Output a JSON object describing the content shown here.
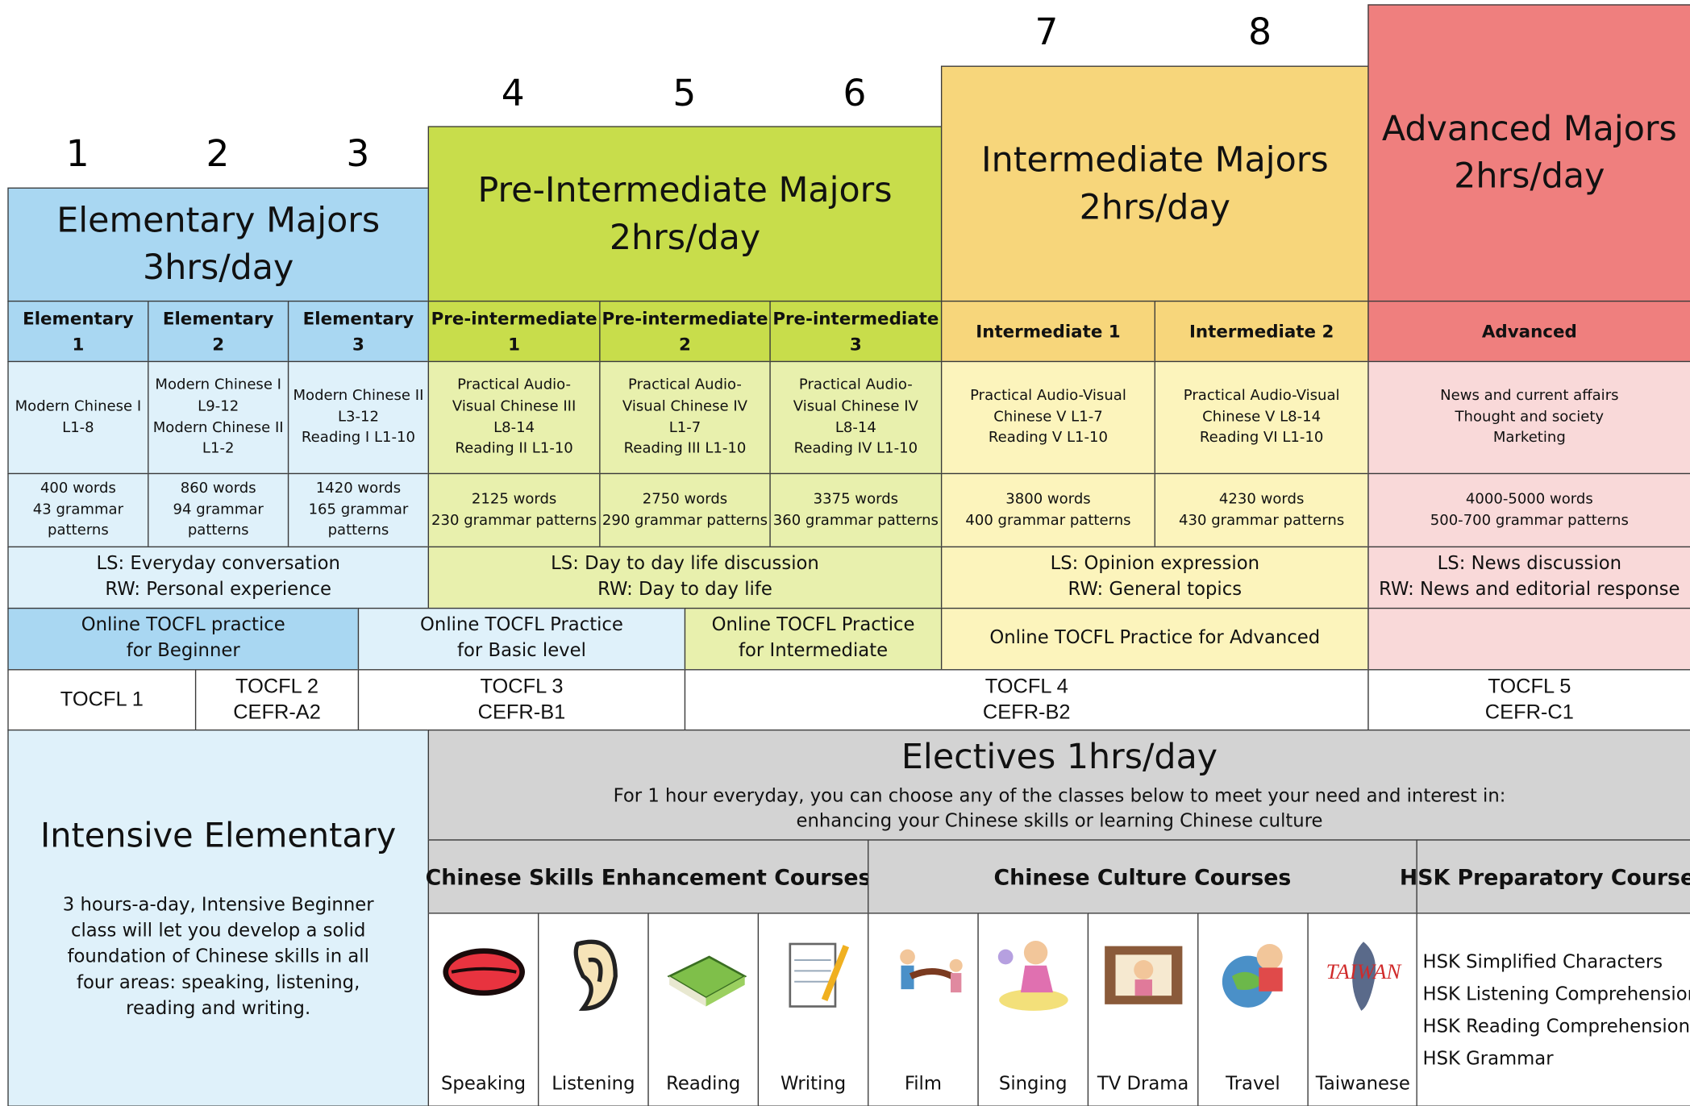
{
  "level_numbers": [
    "1",
    "2",
    "3",
    "4",
    "5",
    "6",
    "7",
    "8"
  ],
  "majors": [
    [
      "Elementary Majors",
      "3hrs/day"
    ],
    [
      "Pre-Intermediate Majors",
      "2hrs/day"
    ],
    [
      "Intermediate Majors",
      "2hrs/day"
    ],
    [
      "Advanced Majors",
      "2hrs/day"
    ]
  ],
  "levels": [
    [
      "Elementary",
      "1"
    ],
    [
      "Elementary",
      "2"
    ],
    [
      "Elementary",
      "3"
    ],
    [
      "Pre-intermediate",
      "1"
    ],
    [
      "Pre-intermediate",
      "2"
    ],
    [
      "Pre-intermediate",
      "3"
    ],
    [
      "Intermediate 1"
    ],
    [
      "Intermediate 2"
    ],
    [
      "Advanced"
    ]
  ],
  "textbooks": [
    [
      "Modern Chinese I",
      "L1-8"
    ],
    [
      "Modern Chinese I",
      "L9-12",
      "Modern Chinese II",
      "L1-2"
    ],
    [
      "Modern Chinese II",
      "L3-12",
      "Reading I L1-10"
    ],
    [
      "Practical Audio-",
      "Visual Chinese III",
      "L8-14",
      "Reading II L1-10"
    ],
    [
      "Practical Audio-",
      "Visual Chinese IV",
      "L1-7",
      "Reading III L1-10"
    ],
    [
      "Practical Audio-",
      "Visual Chinese IV",
      "L8-14",
      "Reading IV L1-10"
    ],
    [
      "Practical Audio-Visual",
      "Chinese V L1-7",
      "Reading V L1-10"
    ],
    [
      "Practical Audio-Visual",
      "Chinese V L8-14",
      "Reading VI L1-10"
    ],
    [
      "News and current affairs",
      "Thought and society",
      "Marketing"
    ]
  ],
  "vocabulary": [
    [
      "400 words",
      "43 grammar",
      "patterns"
    ],
    [
      "860 words",
      "94 grammar",
      "patterns"
    ],
    [
      "1420 words",
      "165 grammar",
      "patterns"
    ],
    [
      "2125 words",
      "230 grammar patterns"
    ],
    [
      "2750 words",
      "290 grammar patterns"
    ],
    [
      "3375 words",
      "360 grammar patterns"
    ],
    [
      "3800 words",
      "400 grammar patterns"
    ],
    [
      "4230 words",
      "430 grammar patterns"
    ],
    [
      "4000-5000 words",
      "500-700 grammar patterns"
    ]
  ],
  "skills": [
    [
      "LS: Everyday conversation",
      "RW: Personal experience"
    ],
    [
      "LS: Day to day life discussion",
      "RW: Day to day life"
    ],
    [
      "LS: Opinion expression",
      "RW: General topics"
    ],
    [
      "LS: News discussion",
      "RW: News and editorial response"
    ]
  ],
  "online_practice": [
    [
      "Online TOCFL practice",
      "for Beginner"
    ],
    [
      "Online TOCFL Practice",
      "for Basic level"
    ],
    [
      "Online TOCFL Practice",
      "for Intermediate"
    ],
    [
      "Online TOCFL Practice for Advanced"
    ]
  ],
  "tocfl": [
    [
      "TOCFL 1"
    ],
    [
      "TOCFL 2",
      "CEFR-A2"
    ],
    [
      "TOCFL 3",
      "CEFR-B1"
    ],
    [
      "TOCFL 4",
      "CEFR-B2"
    ],
    [
      "TOCFL 5",
      "CEFR-C1"
    ]
  ],
  "intensive": {
    "title": "Intensive Elementary",
    "description": [
      "3 hours-a-day, Intensive Beginner",
      "class will let you develop a solid",
      "foundation of  Chinese skills in all",
      "four areas: speaking, listening,",
      "reading and writing."
    ]
  },
  "electives": {
    "title": "Electives  1hrs/day",
    "description": [
      "For 1 hour everyday, you can choose any of the classes below to meet your need and interest in:",
      "enhancing your Chinese skills or learning Chinese culture"
    ],
    "categories": [
      {
        "name": "Chinese Skills Enhancement Courses",
        "courses": [
          "Speaking",
          "Listening",
          "Reading",
          "Writing"
        ]
      },
      {
        "name": "Chinese Culture Courses",
        "courses": [
          "Film",
          "Singing",
          "TV Drama",
          "Travel",
          "Taiwanese"
        ]
      },
      {
        "name": "HSK Preparatory Courses",
        "courses": [
          "HSK Simplified Characters",
          "HSK Listening Comprehension",
          "HSK Reading Comprehension",
          "HSK Grammar"
        ]
      }
    ]
  }
}
